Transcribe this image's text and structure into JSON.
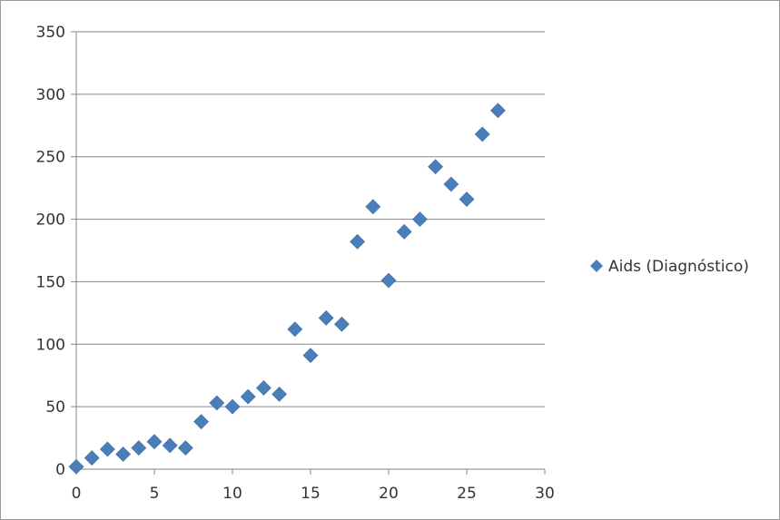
{
  "chart_data": {
    "type": "scatter",
    "title": "",
    "xlabel": "",
    "ylabel": "",
    "xlim": [
      0,
      30
    ],
    "ylim": [
      0,
      350
    ],
    "x_ticks": [
      0,
      5,
      10,
      15,
      20,
      25,
      30
    ],
    "y_ticks": [
      0,
      50,
      100,
      150,
      200,
      250,
      300,
      350
    ],
    "grid": "horizontal",
    "legend_position": "right",
    "marker": "diamond",
    "series": [
      {
        "name": "Aids (Diagnóstico)",
        "color": "#4a7ebb",
        "points": [
          {
            "x": 0,
            "y": 2
          },
          {
            "x": 1,
            "y": 9
          },
          {
            "x": 2,
            "y": 16
          },
          {
            "x": 3,
            "y": 12
          },
          {
            "x": 4,
            "y": 17
          },
          {
            "x": 5,
            "y": 22
          },
          {
            "x": 6,
            "y": 19
          },
          {
            "x": 7,
            "y": 17
          },
          {
            "x": 8,
            "y": 38
          },
          {
            "x": 9,
            "y": 53
          },
          {
            "x": 10,
            "y": 50
          },
          {
            "x": 11,
            "y": 58
          },
          {
            "x": 12,
            "y": 65
          },
          {
            "x": 13,
            "y": 60
          },
          {
            "x": 14,
            "y": 112
          },
          {
            "x": 15,
            "y": 91
          },
          {
            "x": 16,
            "y": 121
          },
          {
            "x": 17,
            "y": 116
          },
          {
            "x": 18,
            "y": 182
          },
          {
            "x": 19,
            "y": 210
          },
          {
            "x": 20,
            "y": 151
          },
          {
            "x": 21,
            "y": 190
          },
          {
            "x": 22,
            "y": 200
          },
          {
            "x": 23,
            "y": 242
          },
          {
            "x": 24,
            "y": 228
          },
          {
            "x": 25,
            "y": 216
          },
          {
            "x": 26,
            "y": 268
          },
          {
            "x": 27,
            "y": 287
          }
        ]
      }
    ]
  }
}
